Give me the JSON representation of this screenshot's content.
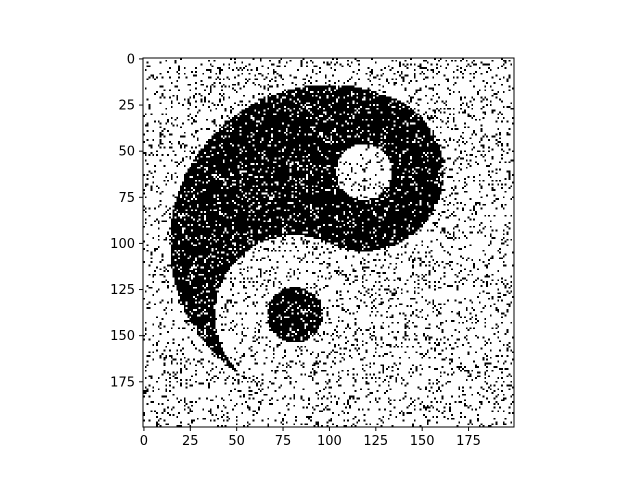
{
  "figure": {
    "background": "#ffffff"
  },
  "image": {
    "description": "binary noisy yin-yang pattern",
    "grid_size": [
      200,
      200
    ],
    "noise_fraction": 0.12,
    "colors": {
      "black": "#000000",
      "white": "#ffffff"
    }
  },
  "axes": {
    "x_ticks": [
      "0",
      "25",
      "50",
      "75",
      "100",
      "125",
      "150",
      "175"
    ],
    "y_ticks": [
      "0",
      "25",
      "50",
      "75",
      "100",
      "125",
      "150",
      "175"
    ],
    "xlim": [
      -0.5,
      199.5
    ],
    "ylim": [
      199.5,
      -0.5
    ]
  }
}
